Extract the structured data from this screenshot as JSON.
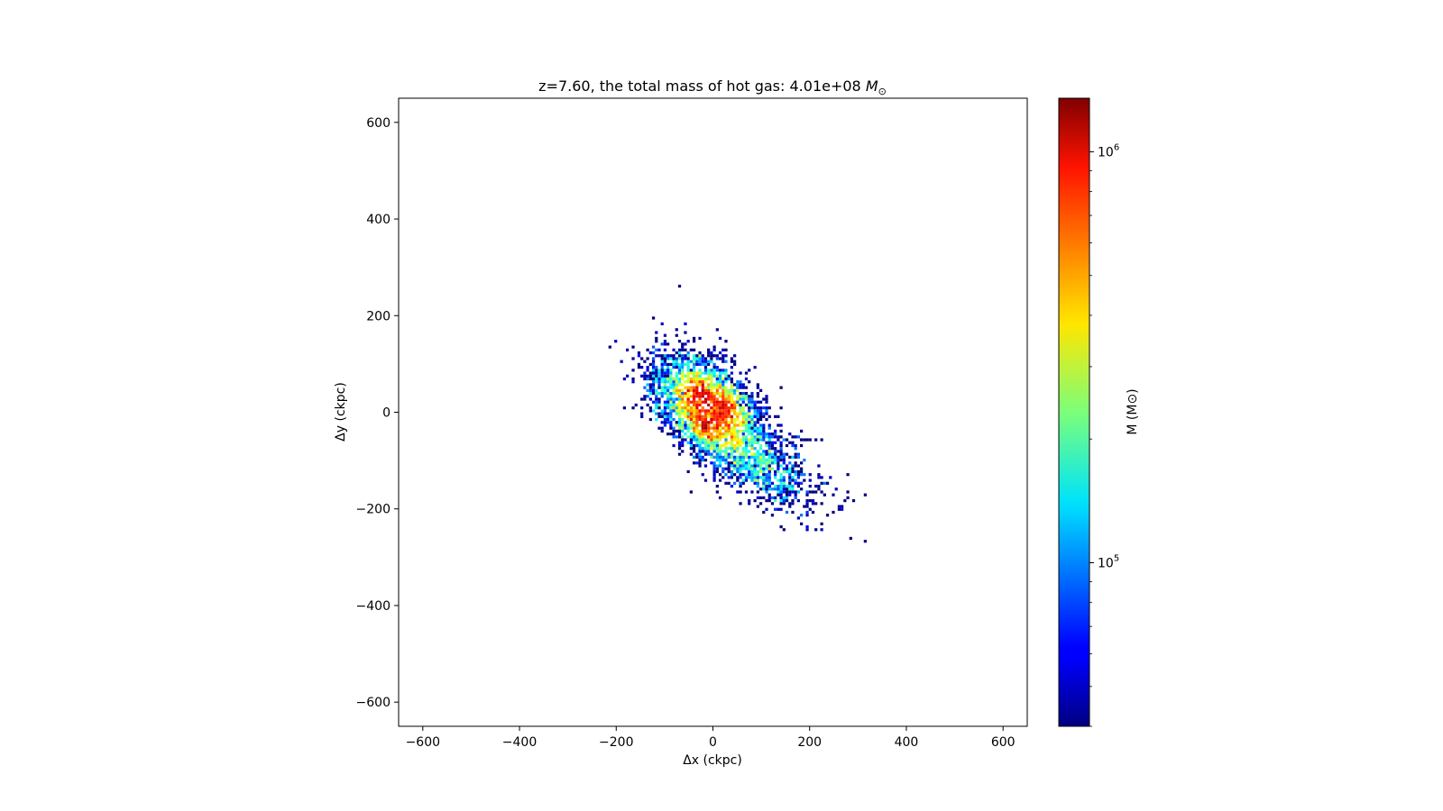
{
  "chart_data": {
    "type": "heatmap",
    "title": "z=7.60, the total mass of hot gas: 4.01e+08 M⊙",
    "title_text": "z=7.60, the total mass of hot gas: 4.01e+08 ",
    "title_symbol": "M",
    "title_subscript": "⊙",
    "xlabel": "Δx (ckpc)",
    "ylabel": "Δy (ckpc)",
    "xlim": [
      -650,
      650
    ],
    "ylim": [
      -650,
      650
    ],
    "xticks": [
      -600,
      -400,
      -200,
      0,
      200,
      400,
      600
    ],
    "yticks": [
      -600,
      -400,
      -200,
      0,
      200,
      400,
      600
    ],
    "xtick_labels": [
      "−600",
      "−400",
      "−200",
      "0",
      "200",
      "400",
      "600"
    ],
    "ytick_labels": [
      "−600",
      "−400",
      "−200",
      "0",
      "200",
      "400",
      "600"
    ],
    "grid": false,
    "colormap": "jet",
    "colorbar": {
      "label": "M (M⊙)",
      "scale": "log",
      "range": [
        40000,
        1350000
      ],
      "ticks": [
        100000,
        1000000
      ],
      "tick_labels": [
        {
          "base": "10",
          "exp": "5"
        },
        {
          "base": "10",
          "exp": "6"
        }
      ]
    },
    "distribution": {
      "description_center": [
        0,
        0
      ],
      "components": [
        {
          "cx": -10,
          "cy": 10,
          "sx": 48,
          "sy": 48,
          "rho": -0.45,
          "weight": 0.72
        },
        {
          "cx": 40,
          "cy": -45,
          "sx": 80,
          "sy": 70,
          "rho": -0.8,
          "weight": 0.2
        },
        {
          "cx": 100,
          "cy": -120,
          "sx": 50,
          "sy": 40,
          "rho": -0.6,
          "weight": 0.08
        }
      ],
      "core_peaks": [
        [
          -15,
          -30
        ],
        [
          -30,
          40
        ],
        [
          30,
          10
        ]
      ],
      "seed": 7
    }
  }
}
